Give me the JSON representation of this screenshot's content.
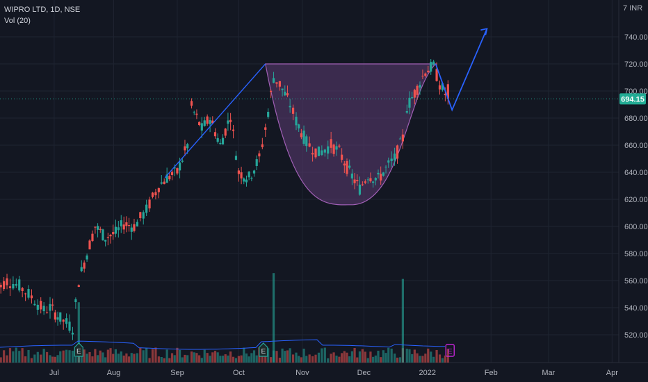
{
  "header": {
    "symbol_line": "WIPRO LTD, 1D, NSE",
    "volume_indicator": "Vol (20)",
    "currency": "INR",
    "top_price_digit": "7"
  },
  "colors": {
    "background": "#131722",
    "grid": "#1f2431",
    "up_candle": "#26a69a",
    "down_candle": "#ef5350",
    "pattern_fill": "#5c3c73",
    "pattern_stroke": "#a05fb5",
    "trend_line": "#2962ff",
    "price_line": "#22ab94",
    "volume_ma": "#2962ff",
    "earnings_up": "#26a69a",
    "earnings_down": "#c026d3"
  },
  "chart_data": {
    "type": "candlestick",
    "y_axis": {
      "range": [
        500,
        770
      ],
      "tick_labels": [
        "520.00",
        "540.00",
        "560.00",
        "580.00",
        "600.00",
        "620.00",
        "640.00",
        "660.00",
        "680.00",
        "700.00",
        "720.00",
        "740.00"
      ]
    },
    "x_axis": {
      "tick_labels": [
        "Jul",
        "Aug",
        "Sep",
        "Oct",
        "Nov",
        "Dec",
        "2022",
        "Feb",
        "Mar",
        "Apr"
      ]
    },
    "last_price": "694.15",
    "last_price_value": 694.15,
    "price_path": [
      [
        "2021-06-04",
        552
      ],
      [
        "2021-06-10",
        560
      ],
      [
        "2021-06-16",
        556
      ],
      [
        "2021-06-22",
        548
      ],
      [
        "2021-06-28",
        538
      ],
      [
        "2021-07-01",
        540
      ],
      [
        "2021-07-06",
        532
      ],
      [
        "2021-07-12",
        525
      ],
      [
        "2021-07-15",
        560
      ],
      [
        "2021-07-19",
        580
      ],
      [
        "2021-07-23",
        600
      ],
      [
        "2021-07-28",
        592
      ],
      [
        "2021-08-02",
        595
      ],
      [
        "2021-08-06",
        602
      ],
      [
        "2021-08-11",
        600
      ],
      [
        "2021-08-17",
        612
      ],
      [
        "2021-08-23",
        630
      ],
      [
        "2021-08-27",
        636
      ],
      [
        "2021-09-01",
        640
      ],
      [
        "2021-09-06",
        660
      ],
      [
        "2021-09-08",
        688
      ],
      [
        "2021-09-13",
        672
      ],
      [
        "2021-09-17",
        680
      ],
      [
        "2021-09-22",
        660
      ],
      [
        "2021-09-27",
        682
      ],
      [
        "2021-10-01",
        640
      ],
      [
        "2021-10-06",
        636
      ],
      [
        "2021-10-11",
        650
      ],
      [
        "2021-10-14",
        672
      ],
      [
        "2021-10-18",
        710
      ],
      [
        "2021-10-21",
        705
      ],
      [
        "2021-10-26",
        690
      ],
      [
        "2021-10-29",
        678
      ],
      [
        "2021-11-03",
        662
      ],
      [
        "2021-11-09",
        654
      ],
      [
        "2021-11-15",
        660
      ],
      [
        "2021-11-19",
        655
      ],
      [
        "2021-11-24",
        640
      ],
      [
        "2021-11-29",
        628
      ],
      [
        "2021-12-03",
        638
      ],
      [
        "2021-12-08",
        635
      ],
      [
        "2021-12-13",
        645
      ],
      [
        "2021-12-16",
        650
      ],
      [
        "2021-12-20",
        665
      ],
      [
        "2021-12-22",
        688
      ],
      [
        "2021-12-27",
        702
      ],
      [
        "2021-12-31",
        715
      ],
      [
        "2022-01-04",
        718
      ],
      [
        "2022-01-07",
        705
      ],
      [
        "2022-01-11",
        694.15
      ]
    ],
    "volume_spikes": [
      [
        "2021-07-15",
        0.62
      ],
      [
        "2021-10-18",
        0.92
      ],
      [
        "2021-12-20",
        0.86
      ]
    ],
    "earnings_markers": [
      {
        "date": "2021-07-15",
        "label": "E",
        "style": "past"
      },
      {
        "date": "2021-10-13",
        "label": "E",
        "style": "past"
      },
      {
        "date": "2022-01-12",
        "label": "E",
        "style": "upcoming"
      }
    ],
    "annotations": [
      {
        "type": "trend_line",
        "points": [
          [
            "2021-08-26",
            636
          ],
          [
            "2021-10-14",
            720
          ]
        ]
      },
      {
        "type": "cup_pattern",
        "rim": 720,
        "bottom": 616,
        "start": "2021-10-14",
        "bottom_date": "2021-11-25",
        "end": "2022-01-05"
      },
      {
        "type": "projection_arrow",
        "points": [
          [
            "2022-01-05",
            720
          ],
          [
            "2022-01-13",
            686
          ],
          [
            "2022-01-30",
            746
          ]
        ]
      }
    ]
  }
}
